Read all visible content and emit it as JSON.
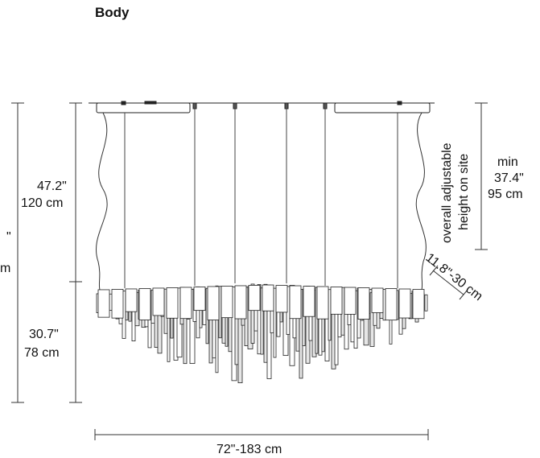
{
  "title": "Body",
  "dimensions": {
    "upper_height_in": "47.2\"",
    "upper_height_cm": "120 cm",
    "lower_height_in": "30.7\"",
    "lower_height_cm": "78 cm",
    "total_partial_in": "\"",
    "total_partial_cm": "m",
    "min_label": "min",
    "min_in": "37.4\"",
    "min_cm": "95 cm",
    "adjustable_line1": "overall adjustable",
    "adjustable_line2": "height on site",
    "depth": "11.8\"-30 cm",
    "width": "72\"-183 cm"
  }
}
